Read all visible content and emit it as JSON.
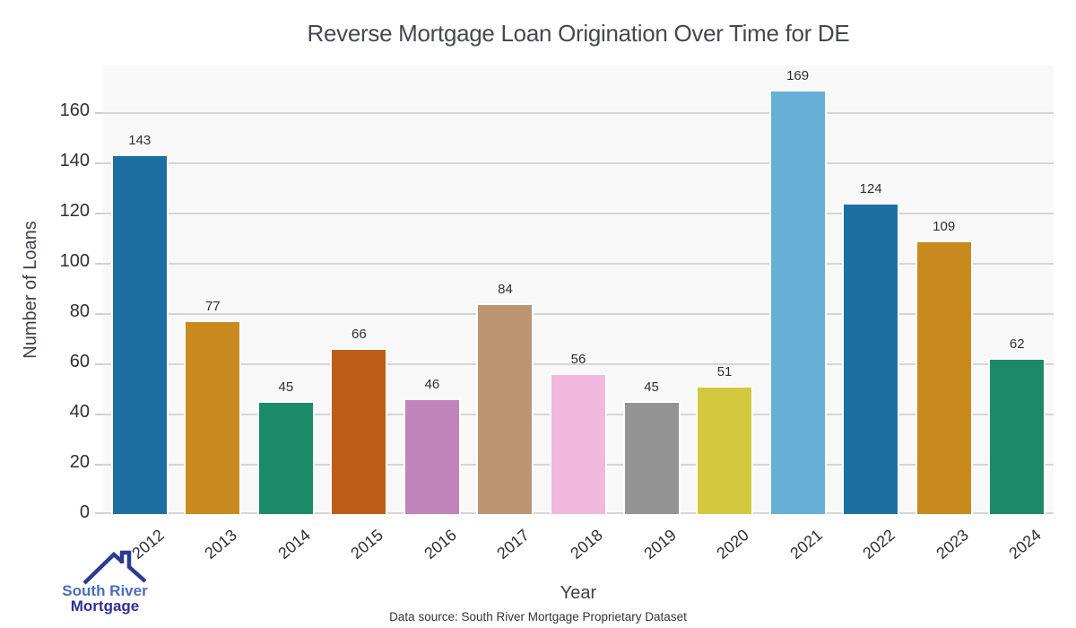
{
  "title": "Reverse Mortgage Loan Origination Over Time for DE",
  "chart_data": {
    "type": "bar",
    "title": "Reverse Mortgage Loan Origination Over Time for DE",
    "categories": [
      "2012",
      "2013",
      "2014",
      "2015",
      "2016",
      "2017",
      "2018",
      "2019",
      "2020",
      "2021",
      "2022",
      "2023",
      "2024"
    ],
    "values": [
      143,
      77,
      45,
      66,
      46,
      84,
      56,
      45,
      51,
      169,
      124,
      109,
      62
    ],
    "bar_colors": [
      "#1e6fa1",
      "#c8891e",
      "#1b8a66",
      "#bd5d17",
      "#c083ba",
      "#bd9471",
      "#f2b7dc",
      "#949494",
      "#d3c93f",
      "#66afd7",
      "#1e6fa1",
      "#c8891e",
      "#1b8a66"
    ],
    "xlabel": "Year",
    "ylabel": "Number of Loans",
    "ylim": [
      0,
      178.5
    ],
    "yticks": [
      0,
      20,
      40,
      60,
      80,
      100,
      120,
      140,
      160
    ],
    "grid": true,
    "legend": "none",
    "plot_bg": "#f8f8f8",
    "grid_color": "#d5d5d5",
    "value_labels_shown": true
  },
  "footer": {
    "source_text": "Data source: South River Mortgage Proprietary Dataset"
  },
  "logo": {
    "line1": "South River",
    "line2": "Mortgage",
    "line1_color": "#4a6dbc",
    "line2_color": "#2e3193",
    "icon_color": "#2c3a90"
  }
}
